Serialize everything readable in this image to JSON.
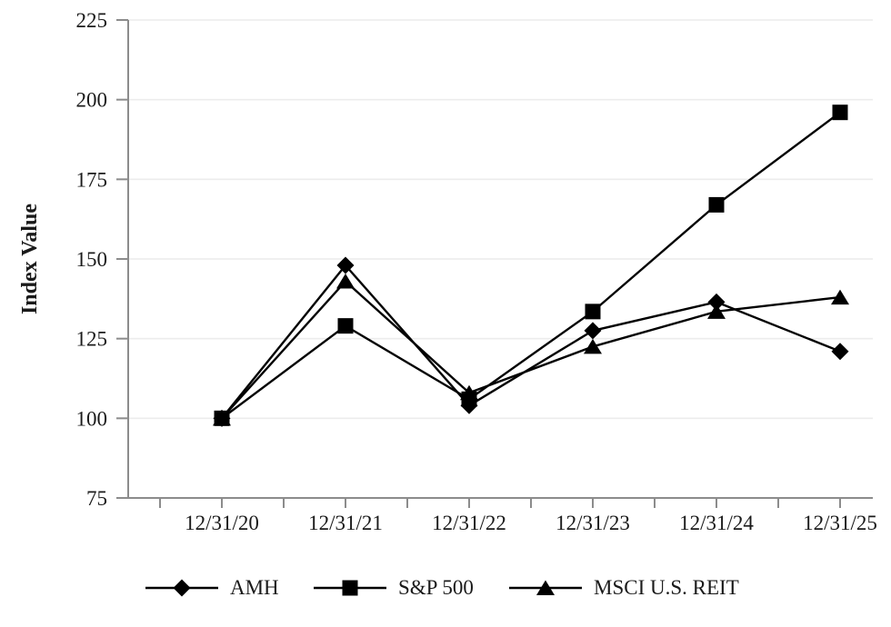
{
  "chart_data": {
    "type": "line",
    "title": "",
    "xlabel": "",
    "ylabel": "Index Value",
    "ylim": [
      75,
      225
    ],
    "y_ticks": [
      75,
      100,
      125,
      150,
      175,
      200,
      225
    ],
    "grid": "horizontal",
    "legend_position": "bottom",
    "categories": [
      "12/31/20",
      "12/31/21",
      "12/31/22",
      "12/31/23",
      "12/31/24",
      "12/31/25"
    ],
    "series": [
      {
        "name": "AMH",
        "marker": "diamond",
        "values": [
          100,
          148,
          104,
          127.5,
          136.5,
          121
        ]
      },
      {
        "name": "S&P 500",
        "marker": "square",
        "values": [
          100,
          129,
          106,
          133.5,
          167,
          196
        ]
      },
      {
        "name": "MSCI U.S. REIT",
        "marker": "triangle",
        "values": [
          100,
          143,
          108,
          122.5,
          133.5,
          138
        ]
      }
    ],
    "colors": {
      "series_line": "#000000",
      "marker_fill": "#000000",
      "axis": "#8c8c8c",
      "gridline": "#ececec",
      "text": "#1a1a1a",
      "background": "#ffffff"
    }
  }
}
